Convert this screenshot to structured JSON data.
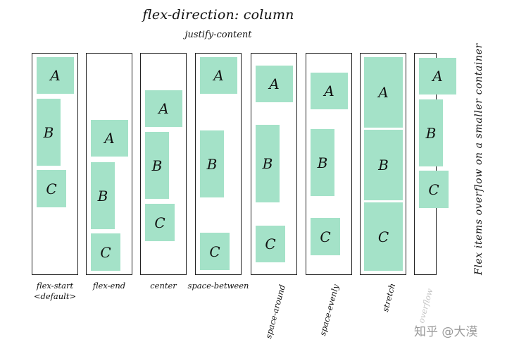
{
  "title": "flex-direction: column",
  "subtitle": "justify-content",
  "side_note": "Flex items overflow on a smaller container",
  "watermark": "知乎 @大漠",
  "colors": {
    "item": "#a4e2c8",
    "border": "#222222",
    "faded_label": "#c4c4c4"
  },
  "diagrams": [
    {
      "label": [
        "flex-start",
        "<default>"
      ],
      "items": [
        "A",
        "B",
        "C"
      ]
    },
    {
      "label": [
        "flex-end"
      ],
      "items": [
        "A",
        "B",
        "C"
      ]
    },
    {
      "label": [
        "center"
      ],
      "items": [
        "A",
        "B",
        "C"
      ]
    },
    {
      "label": [
        "space-between"
      ],
      "items": [
        "A",
        "B",
        "C"
      ]
    },
    {
      "label": [
        "space-around"
      ],
      "items": [
        "A",
        "B",
        "C"
      ]
    },
    {
      "label": [
        "space-evenly"
      ],
      "items": [
        "A",
        "B",
        "C"
      ]
    },
    {
      "label": [
        "stretch"
      ],
      "items": [
        "A",
        "B",
        "C"
      ]
    },
    {
      "label": [
        "overflow"
      ],
      "items": [
        "A",
        "B",
        "C"
      ]
    }
  ]
}
